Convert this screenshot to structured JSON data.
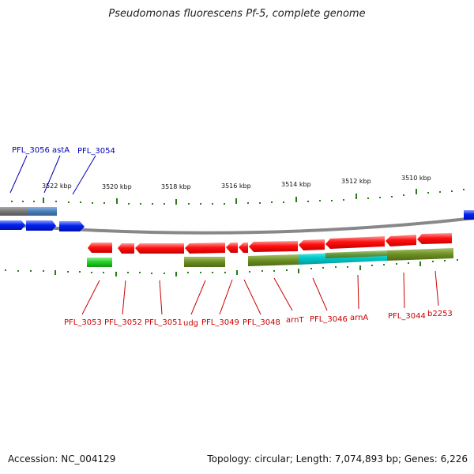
{
  "title": "Pseudomonas fluorescens Pf-5, complete genome",
  "footer": {
    "accession": "Accession: NC_004129",
    "stats": "Topology: circular; Length: 7,074,893 bp; Genes: 6,226"
  },
  "colors": {
    "backbone": "#888888",
    "tick": "#2a7a1a",
    "top_label": "#0000bb",
    "bottom_label": "#cc0000",
    "gene_forward": "#0022ee",
    "gene_reverse": "#ee0000",
    "feature_olive": "#6b8e23",
    "feature_green": "#22cc22",
    "feature_cyan": "#00cccc",
    "feature_gray": "#777777",
    "feature_steelblue": "#4a7fb8"
  },
  "scale_labels": [
    "3522 kbp",
    "3520 kbp",
    "3518 kbp",
    "3516 kbp",
    "3514 kbp",
    "3512 kbp",
    "3510 kbp"
  ],
  "top_genes": [
    "PFL_3056",
    "astA",
    "PFL_3054"
  ],
  "bottom_genes": [
    "PFL_3053",
    "PFL_3052",
    "PFL_3051",
    "udg",
    "PFL_3049",
    "PFL_3048",
    "arnT",
    "PFL_3046",
    "arnA",
    "PFL_3044",
    "b2253"
  ]
}
